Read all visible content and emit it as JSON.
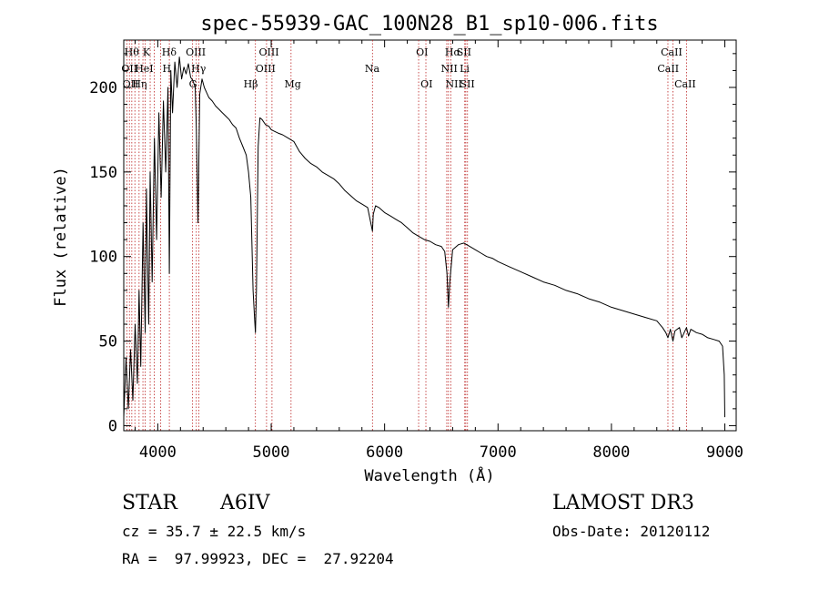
{
  "chart_data": {
    "type": "line",
    "title": "spec-55939-GAC_100N28_B1_sp10-006.fits",
    "xlabel": "Wavelength (Å)",
    "ylabel": "Flux (relative)",
    "xlim": [
      3700,
      9100
    ],
    "ylim": [
      -3,
      228
    ],
    "xticks": [
      4000,
      5000,
      6000,
      7000,
      8000,
      9000
    ],
    "xtick_labels": [
      "4000",
      "5000",
      "6000",
      "7000",
      "8000",
      "9000"
    ],
    "yticks": [
      0,
      50,
      100,
      150,
      200
    ],
    "ytick_labels": [
      "0",
      "50",
      "100",
      "150",
      "200"
    ],
    "grid": false,
    "series": [
      {
        "name": "spectrum",
        "x": [
          3700,
          3720,
          3740,
          3760,
          3780,
          3800,
          3820,
          3835,
          3850,
          3870,
          3889,
          3900,
          3920,
          3933,
          3950,
          3970,
          3990,
          4010,
          4030,
          4050,
          4070,
          4090,
          4102,
          4115,
          4130,
          4150,
          4170,
          4190,
          4210,
          4230,
          4250,
          4270,
          4290,
          4310,
          4330,
          4340,
          4355,
          4370,
          4390,
          4410,
          4430,
          4450,
          4480,
          4510,
          4540,
          4570,
          4600,
          4630,
          4660,
          4690,
          4720,
          4750,
          4780,
          4800,
          4820,
          4840,
          4855,
          4861,
          4870,
          4885,
          4900,
          4920,
          4950,
          4980,
          5000,
          5030,
          5060,
          5100,
          5150,
          5200,
          5250,
          5300,
          5350,
          5400,
          5450,
          5500,
          5550,
          5600,
          5650,
          5700,
          5750,
          5800,
          5850,
          5893,
          5900,
          5920,
          5950,
          6000,
          6050,
          6100,
          6150,
          6200,
          6250,
          6300,
          6350,
          6400,
          6450,
          6500,
          6530,
          6550,
          6563,
          6575,
          6600,
          6650,
          6700,
          6750,
          6800,
          6850,
          6900,
          6950,
          7000,
          7100,
          7200,
          7300,
          7400,
          7500,
          7600,
          7700,
          7800,
          7900,
          8000,
          8100,
          8200,
          8300,
          8400,
          8450,
          8480,
          8498,
          8520,
          8542,
          8560,
          8600,
          8620,
          8662,
          8680,
          8700,
          8750,
          8800,
          8850,
          8900,
          8950,
          8980,
          8995,
          9000
        ],
        "y": [
          5,
          40,
          10,
          45,
          15,
          60,
          25,
          80,
          35,
          120,
          55,
          140,
          60,
          150,
          85,
          170,
          110,
          185,
          135,
          192,
          150,
          200,
          90,
          210,
          185,
          215,
          200,
          218,
          205,
          212,
          208,
          214,
          206,
          204,
          200,
          175,
          120,
          196,
          205,
          200,
          197,
          194,
          192,
          189,
          187,
          185,
          183,
          181,
          178,
          176,
          170,
          165,
          160,
          150,
          135,
          80,
          62,
          55,
          80,
          165,
          182,
          181,
          178,
          177,
          175,
          174,
          173,
          172,
          170,
          168,
          162,
          158,
          155,
          153,
          150,
          148,
          146,
          143,
          139,
          136,
          133,
          131,
          129,
          115,
          125,
          130,
          129,
          126,
          124,
          122,
          120,
          117,
          114,
          112,
          110,
          109,
          107,
          106,
          103,
          90,
          70,
          85,
          104,
          107,
          108,
          106,
          104,
          102,
          100,
          99,
          97,
          94,
          91,
          88,
          85,
          83,
          80,
          78,
          75,
          73,
          70,
          68,
          66,
          64,
          62,
          58,
          55,
          52,
          57,
          50,
          56,
          58,
          52,
          58,
          53,
          57,
          55,
          54,
          52,
          51,
          50,
          47,
          30,
          5
        ]
      }
    ],
    "line_labels": {
      "top": [
        "Hθ",
        "K",
        "Hδ",
        "OIII",
        "OIII",
        "OI",
        "Hα",
        "SII",
        "CaII"
      ],
      "mid": [
        "OII",
        "HeI",
        "H",
        "Hγ",
        "OIII",
        "Na",
        "NII",
        "Li",
        "CaII"
      ],
      "low": [
        "OII",
        "Hη",
        "G",
        "Hβ",
        "Mg",
        "OI",
        "NII",
        "SII",
        "CaII"
      ]
    },
    "info": {
      "object_class": "STAR",
      "subclass": "A6IV",
      "cz": "cz = 35.7 ± 22.5 km/s",
      "coords": "RA =  97.99923, DEC =  27.92204",
      "survey": "LAMOST DR3",
      "obs_date": "Obs-Date: 20120112"
    }
  }
}
